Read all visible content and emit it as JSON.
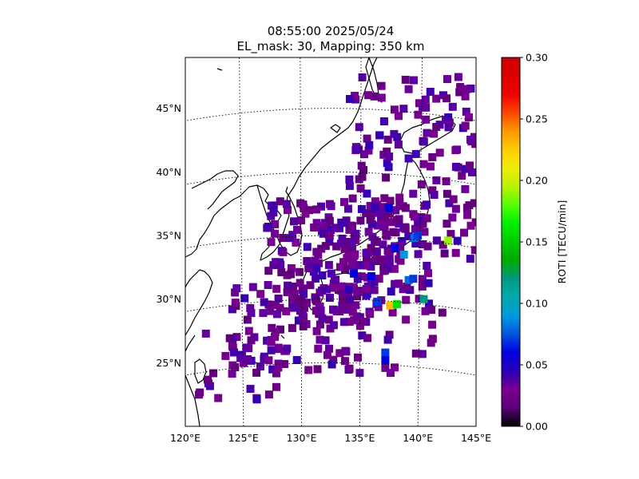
{
  "chart_data": {
    "type": "heatmap",
    "title_line1": "08:55:00 2025/05/24",
    "title_line2": "EL_mask: 30, Mapping: 350 km",
    "map": {
      "lon_range": [
        120,
        145
      ],
      "lat_range": [
        20,
        49
      ],
      "lon_ticks": [
        {
          "value": 120,
          "label": "120°E"
        },
        {
          "value": 125,
          "label": "125°E"
        },
        {
          "value": 130,
          "label": "130°E"
        },
        {
          "value": 135,
          "label": "135°E"
        },
        {
          "value": 140,
          "label": "140°E"
        },
        {
          "value": 145,
          "label": "145°E"
        }
      ],
      "lat_ticks": [
        {
          "value": 25,
          "label": "25°N"
        },
        {
          "value": 30,
          "label": "30°N"
        },
        {
          "value": 35,
          "label": "35°N"
        },
        {
          "value": 40,
          "label": "40°N"
        },
        {
          "value": 45,
          "label": "45°N"
        }
      ],
      "grid": "dotted"
    },
    "colorbar": {
      "label": "ROTI [TECU/min]",
      "range": [
        0,
        0.3
      ],
      "colormap": "nipy_spectral",
      "ticks": [
        {
          "value": 0.0,
          "label": "0.00"
        },
        {
          "value": 0.05,
          "label": "0.05"
        },
        {
          "value": 0.1,
          "label": "0.10"
        },
        {
          "value": 0.15,
          "label": "0.15"
        },
        {
          "value": 0.2,
          "label": "0.20"
        },
        {
          "value": 0.25,
          "label": "0.25"
        },
        {
          "value": 0.3,
          "label": "0.30"
        }
      ]
    },
    "background_roti": 0.03,
    "roti_points": [
      {
        "lon": 142.6,
        "lat": 34.6,
        "roti": 0.19
      },
      {
        "lon": 137.6,
        "lat": 29.5,
        "roti": 0.23
      },
      {
        "lon": 138.2,
        "lat": 29.6,
        "roti": 0.16
      },
      {
        "lon": 140.5,
        "lat": 30.0,
        "roti": 0.12
      },
      {
        "lon": 138.8,
        "lat": 33.5,
        "roti": 0.09
      },
      {
        "lon": 139.7,
        "lat": 34.8,
        "roti": 0.08
      },
      {
        "lon": 139.2,
        "lat": 31.5,
        "roti": 0.08
      },
      {
        "lon": 136.5,
        "lat": 29.8,
        "roti": 0.07
      },
      {
        "lon": 137.2,
        "lat": 25.8,
        "roti": 0.07
      },
      {
        "lon": 137.2,
        "lat": 25.2,
        "roti": 0.06
      },
      {
        "lon": 136.0,
        "lat": 31.8,
        "roti": 0.06
      },
      {
        "lon": 138.0,
        "lat": 34.0,
        "roti": 0.06
      },
      {
        "lon": 137.5,
        "lat": 37.2,
        "roti": 0.06
      },
      {
        "lon": 134.5,
        "lat": 32.0,
        "roti": 0.06
      },
      {
        "lon": 140.0,
        "lat": 35.0,
        "roti": 0.07
      },
      {
        "lon": 139.6,
        "lat": 31.6,
        "roti": 0.07
      }
    ]
  }
}
